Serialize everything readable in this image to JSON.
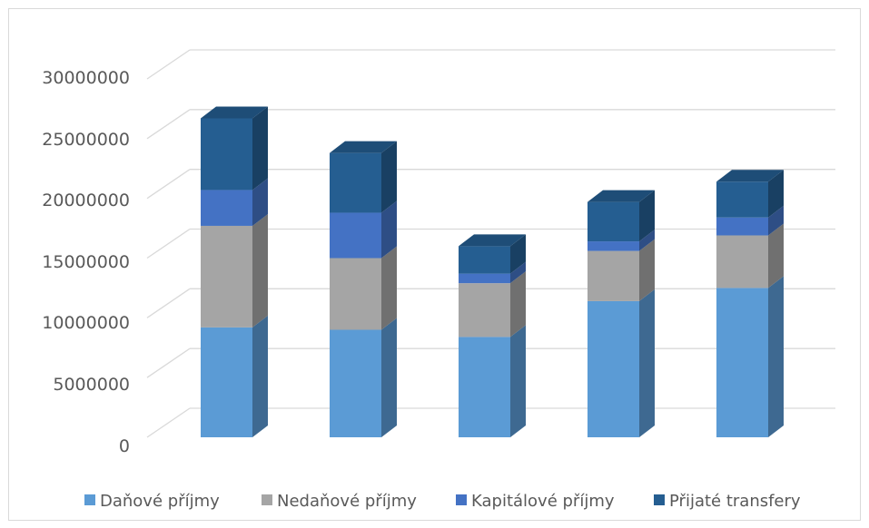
{
  "chart_data": {
    "type": "bar",
    "stacked": true,
    "three_d": true,
    "title": "",
    "xlabel": "",
    "ylabel": "",
    "categories": [
      "",
      "",
      "",
      "",
      ""
    ],
    "ylim": [
      0,
      30000000
    ],
    "yticks": [
      "0",
      "5000000",
      "10000000",
      "15000000",
      "20000000",
      "25000000",
      "30000000"
    ],
    "grid": true,
    "legend_position": "bottom",
    "series": [
      {
        "name": "Daňové příjmy",
        "color": "#5b9bd5",
        "values": [
          9200000,
          9000000,
          8400000,
          11400000,
          12500000
        ]
      },
      {
        "name": "Nedaňové příjmy",
        "color": "#a5a5a5",
        "values": [
          8500000,
          6000000,
          4500000,
          4200000,
          4400000
        ]
      },
      {
        "name": "Kapitálové příjmy",
        "color": "#4472c4",
        "values": [
          3000000,
          3800000,
          800000,
          800000,
          1500000
        ]
      },
      {
        "name": "Přijaté transfery",
        "color": "#255e91",
        "values": [
          6000000,
          5000000,
          2300000,
          3300000,
          3000000
        ]
      }
    ]
  }
}
